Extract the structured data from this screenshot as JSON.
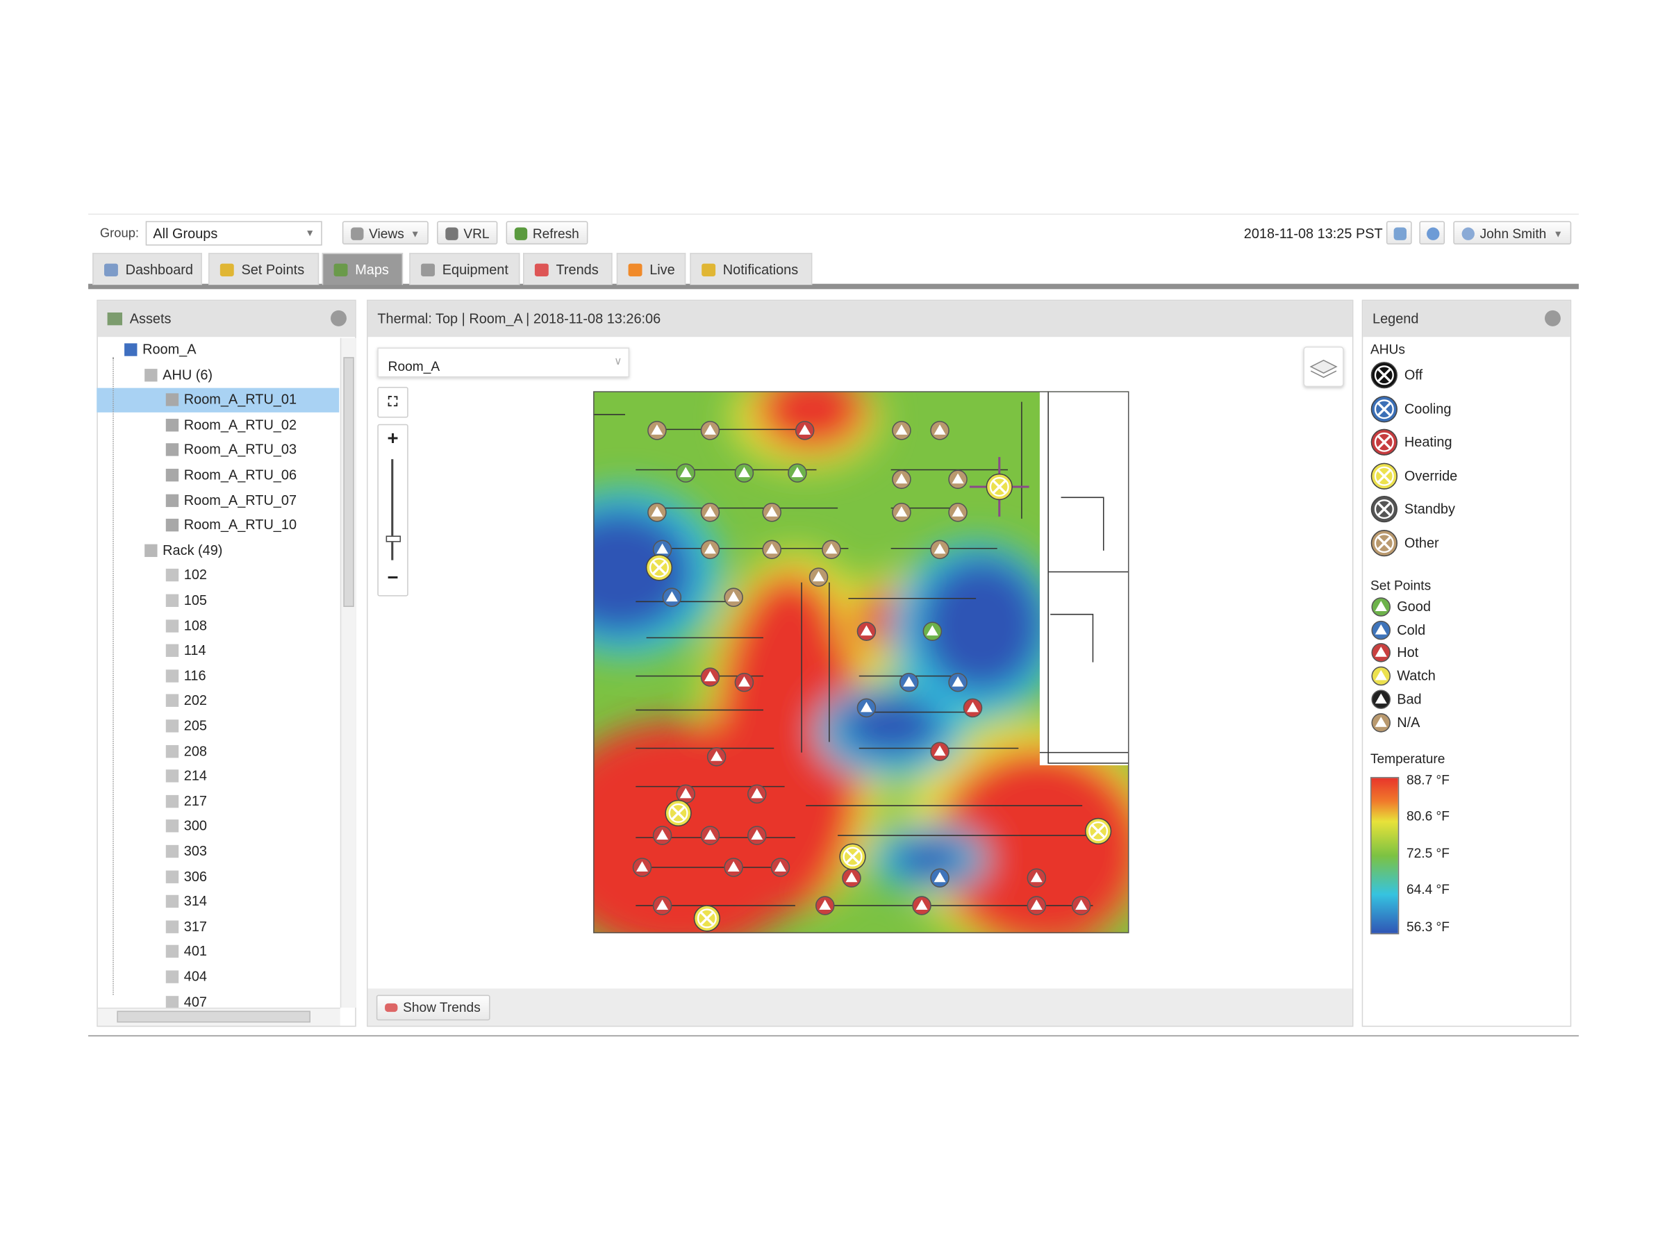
{
  "toolbar": {
    "group_label": "Group:",
    "group_value": "All Groups",
    "buttons": [
      "Views",
      "VRL",
      "Refresh"
    ],
    "datetime": "2018-11-08 13:25 PST",
    "user": "John Smith"
  },
  "tabs": [
    "Dashboard",
    "Set Points",
    "Maps",
    "Equipment",
    "Trends",
    "Live",
    "Notifications"
  ],
  "assets": {
    "title": "Assets",
    "root": "Room_A",
    "ahu_group": "AHU (6)",
    "ahus": [
      "Room_A_RTU_01",
      "Room_A_RTU_02",
      "Room_A_RTU_03",
      "Room_A_RTU_06",
      "Room_A_RTU_07",
      "Room_A_RTU_10"
    ],
    "rack_group": "Rack (49)",
    "racks": [
      "102",
      "105",
      "108",
      "114",
      "116",
      "202",
      "205",
      "208",
      "214",
      "217",
      "300",
      "303",
      "306",
      "314",
      "317",
      "401",
      "404",
      "407"
    ]
  },
  "map": {
    "title": "Thermal: Top | Room_A | 2018-11-08 13:26:06",
    "room_select": "Room_A",
    "show_trends": "Show Trends"
  },
  "legend": {
    "title": "Legend",
    "ahus": {
      "heading": "AHUs",
      "items": [
        {
          "label": "Off",
          "color": "#111111"
        },
        {
          "label": "Cooling",
          "color": "#3b6fb6"
        },
        {
          "label": "Heating",
          "color": "#c63c3f"
        },
        {
          "label": "Override",
          "color": "#ece14e"
        },
        {
          "label": "Standby",
          "color": "#555555"
        },
        {
          "label": "Other",
          "color": "#b9996e"
        }
      ]
    },
    "set_points": {
      "heading": "Set Points",
      "items": [
        {
          "label": "Good",
          "color": "#6db24b"
        },
        {
          "label": "Cold",
          "color": "#3f74ba"
        },
        {
          "label": "Hot",
          "color": "#c9403f"
        },
        {
          "label": "Watch",
          "color": "#ece14e"
        },
        {
          "label": "Bad",
          "color": "#222222"
        },
        {
          "label": "N/A",
          "color": "#b9996e"
        }
      ]
    },
    "temperature": {
      "heading": "Temperature",
      "labels": [
        "88.7 °F",
        "80.6 °F",
        "72.5 °F",
        "64.4 °F",
        "56.3 °F"
      ]
    }
  }
}
